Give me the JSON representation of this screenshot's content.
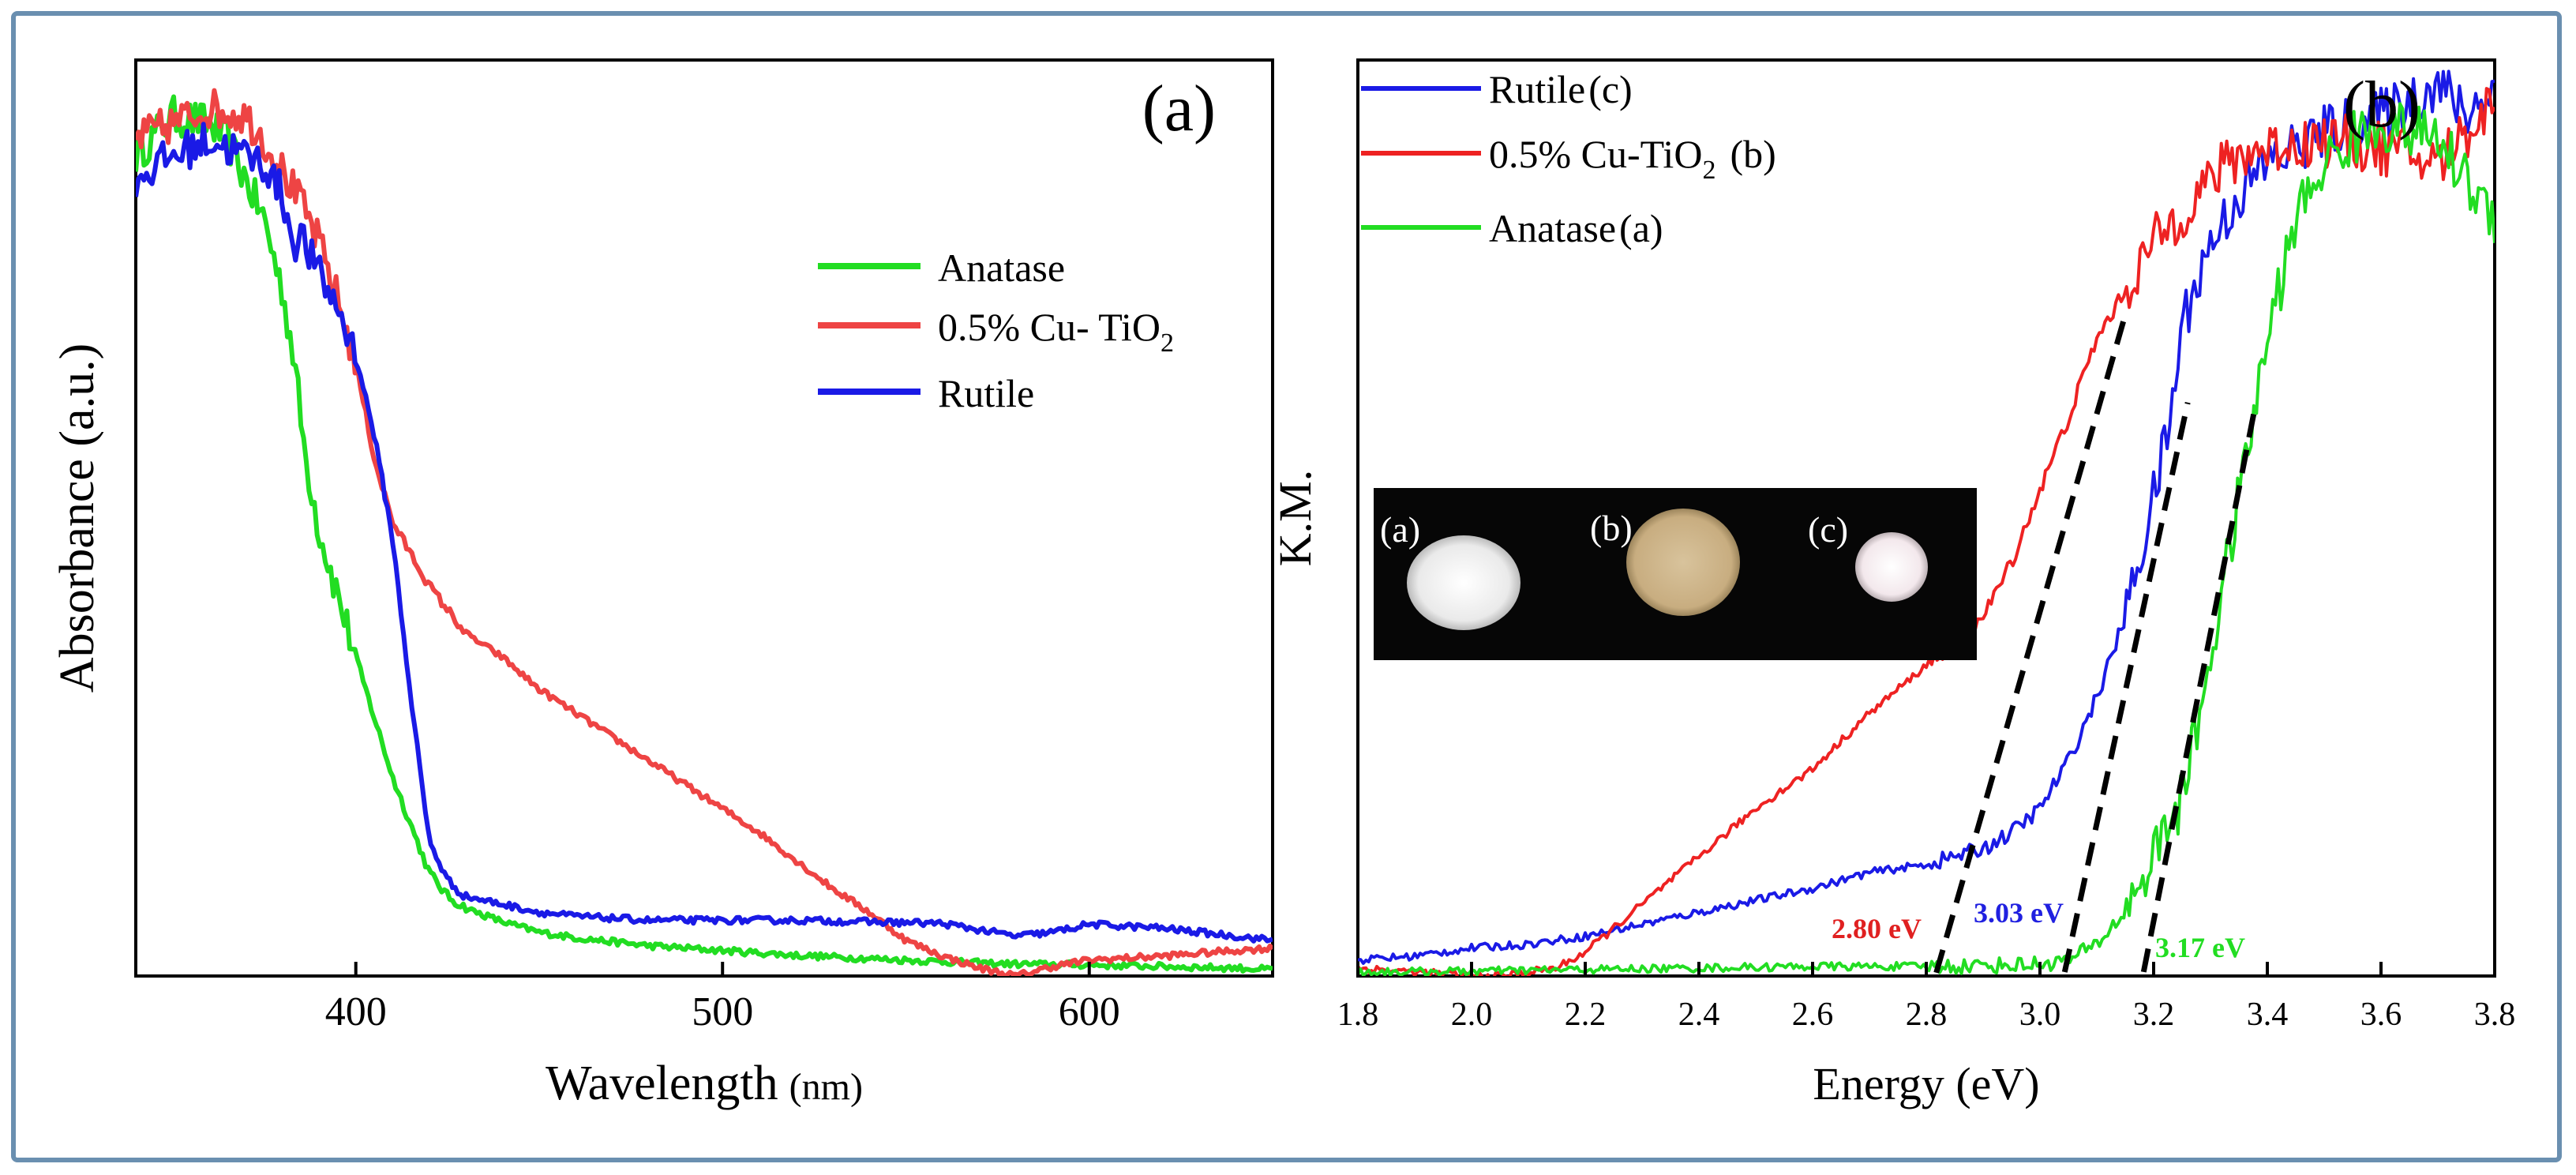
{
  "frame_color": "#6a8fb0",
  "chart_data": [
    {
      "panel": "(a)",
      "type": "line",
      "title": "",
      "xlabel": "Wavelength",
      "xlabel_unit": "(nm)",
      "ylabel": "Absorbance (a.u.)",
      "xlim": [
        340,
        650
      ],
      "ylim": [
        0,
        1.15
      ],
      "xticks": [
        400,
        500,
        600
      ],
      "xtick_labels": [
        "400",
        "500",
        "600"
      ],
      "legend": [
        {
          "label": "Anatase",
          "color": "#22dd22"
        },
        {
          "label": "0.5% Cu- TiO",
          "sub": "2",
          "color": "#ee4444"
        },
        {
          "label": "Rutile",
          "color": "#1a1ae6"
        }
      ],
      "series": [
        {
          "name": "Anatase",
          "color": "#22dd22",
          "x": [
            340,
            350,
            360,
            365,
            370,
            375,
            380,
            383,
            386,
            390,
            395,
            400,
            410,
            420,
            425,
            430,
            440,
            450,
            460,
            480,
            500,
            520,
            540,
            560,
            580,
            600,
            620,
            640,
            650
          ],
          "y": [
            1.03,
            1.08,
            1.07,
            1.05,
            1.0,
            0.95,
            0.86,
            0.78,
            0.66,
            0.56,
            0.48,
            0.4,
            0.25,
            0.13,
            0.1,
            0.085,
            0.068,
            0.055,
            0.048,
            0.038,
            0.032,
            0.026,
            0.022,
            0.018,
            0.015,
            0.014,
            0.012,
            0.01,
            0.008
          ]
        },
        {
          "name": "0.5% Cu- TiO2",
          "color": "#ee4444",
          "x": [
            340,
            350,
            360,
            370,
            375,
            380,
            385,
            390,
            395,
            400,
            405,
            410,
            420,
            430,
            440,
            450,
            460,
            470,
            480,
            490,
            500,
            510,
            520,
            530,
            540,
            550,
            560,
            570,
            580,
            590,
            600,
            620,
            640,
            650
          ],
          "y": [
            1.05,
            1.07,
            1.09,
            1.08,
            1.05,
            1.01,
            0.97,
            0.92,
            0.85,
            0.77,
            0.65,
            0.57,
            0.49,
            0.43,
            0.4,
            0.36,
            0.33,
            0.3,
            0.27,
            0.24,
            0.21,
            0.18,
            0.145,
            0.11,
            0.08,
            0.045,
            0.025,
            0.01,
            0.0,
            0.012,
            0.02,
            0.025,
            0.032,
            0.035
          ]
        },
        {
          "name": "Rutile",
          "color": "#1a1ae6",
          "x": [
            340,
            350,
            360,
            365,
            370,
            375,
            380,
            383,
            385,
            390,
            395,
            400,
            405,
            410,
            415,
            420,
            425,
            430,
            440,
            450,
            460,
            480,
            500,
            520,
            540,
            560,
            580,
            590,
            600,
            620,
            640,
            650
          ],
          "y": [
            1.0,
            1.03,
            1.05,
            1.04,
            1.03,
            1.02,
            0.98,
            0.92,
            0.93,
            0.88,
            0.84,
            0.78,
            0.68,
            0.55,
            0.35,
            0.17,
            0.12,
            0.1,
            0.09,
            0.08,
            0.075,
            0.07,
            0.07,
            0.07,
            0.068,
            0.066,
            0.05,
            0.055,
            0.065,
            0.06,
            0.05,
            0.045
          ]
        }
      ]
    },
    {
      "panel": "(b)",
      "type": "line",
      "title": "",
      "xlabel": "Energy (eV)",
      "ylabel": "K.M.",
      "xlim": [
        1.8,
        3.8
      ],
      "ylim": [
        0,
        1.15
      ],
      "xticks": [
        1.8,
        2.0,
        2.2,
        2.4,
        2.6,
        2.8,
        3.0,
        3.2,
        3.4,
        3.6,
        3.8
      ],
      "xtick_labels": [
        "1.8",
        "2.0",
        "2.2",
        "2.4",
        "2.6",
        "2.8",
        "3.0",
        "3.2",
        "3.4",
        "3.6",
        "3.8"
      ],
      "legend": [
        {
          "label": "Rutile",
          "suffix": "(c)",
          "color": "#1a1ae6"
        },
        {
          "label": "0.5% Cu-TiO",
          "sub": "2",
          "suffix": "(b)",
          "color": "#ee2222"
        },
        {
          "label": "Anatase",
          "suffix": "(a)",
          "color": "#22dd22"
        }
      ],
      "band_gaps": [
        {
          "label": "2.80 eV",
          "value": 2.8,
          "color": "#e02020",
          "line_top": [
            3.15,
            0.83
          ]
        },
        {
          "label": "3.03 eV",
          "value": 3.03,
          "color": "#2020e0",
          "line_top": [
            3.26,
            0.72
          ]
        },
        {
          "label": "3.17 eV",
          "value": 3.17,
          "color": "#22dd22",
          "line_top": [
            3.38,
            0.72
          ]
        }
      ],
      "inset": {
        "labels": [
          "(a)",
          "(b)",
          "(c)"
        ],
        "colors": [
          "#f4f4f4",
          "#cdb48a",
          "#f6eef0"
        ]
      },
      "series": [
        {
          "name": "Rutile",
          "color": "#1a1ae6",
          "x": [
            1.8,
            1.9,
            2.0,
            2.1,
            2.2,
            2.3,
            2.4,
            2.5,
            2.6,
            2.7,
            2.8,
            2.85,
            2.9,
            2.95,
            3.0,
            3.05,
            3.1,
            3.15,
            3.2,
            3.23,
            3.25,
            3.3,
            3.35,
            3.4,
            3.5,
            3.6,
            3.7,
            3.75,
            3.8
          ],
          "y": [
            0.02,
            0.025,
            0.035,
            0.04,
            0.05,
            0.065,
            0.08,
            0.095,
            0.11,
            0.13,
            0.14,
            0.15,
            0.16,
            0.18,
            0.21,
            0.27,
            0.35,
            0.45,
            0.6,
            0.7,
            0.82,
            0.92,
            0.98,
            1.02,
            1.06,
            1.08,
            1.12,
            1.08,
            1.12
          ]
        },
        {
          "name": "0.5% Cu-TiO2",
          "color": "#ee2222",
          "x": [
            1.8,
            1.9,
            2.0,
            2.05,
            2.1,
            2.15,
            2.2,
            2.25,
            2.3,
            2.4,
            2.5,
            2.6,
            2.7,
            2.8,
            2.9,
            2.95,
            3.0,
            3.05,
            3.1,
            3.15,
            3.2,
            3.25,
            3.3,
            3.35,
            3.4,
            3.5,
            3.6,
            3.7,
            3.8
          ],
          "y": [
            0.01,
            0.005,
            0.0,
            0.0,
            0.005,
            0.01,
            0.03,
            0.06,
            0.09,
            0.15,
            0.21,
            0.26,
            0.33,
            0.39,
            0.45,
            0.52,
            0.61,
            0.7,
            0.8,
            0.86,
            0.92,
            0.96,
            1.0,
            1.03,
            1.04,
            1.05,
            1.04,
            1.02,
            1.1
          ]
        },
        {
          "name": "Anatase",
          "color": "#22dd22",
          "x": [
            1.8,
            2.0,
            2.2,
            2.4,
            2.6,
            2.8,
            2.9,
            3.0,
            3.05,
            3.1,
            3.15,
            3.2,
            3.23,
            3.25,
            3.3,
            3.35,
            3.4,
            3.45,
            3.5,
            3.55,
            3.6,
            3.7,
            3.75,
            3.8
          ],
          "y": [
            0.005,
            0.006,
            0.008,
            0.01,
            0.012,
            0.012,
            0.013,
            0.015,
            0.02,
            0.04,
            0.08,
            0.15,
            0.2,
            0.22,
            0.4,
            0.6,
            0.8,
            0.95,
            1.02,
            1.05,
            1.07,
            1.05,
            1.0,
            0.95
          ]
        }
      ]
    }
  ]
}
